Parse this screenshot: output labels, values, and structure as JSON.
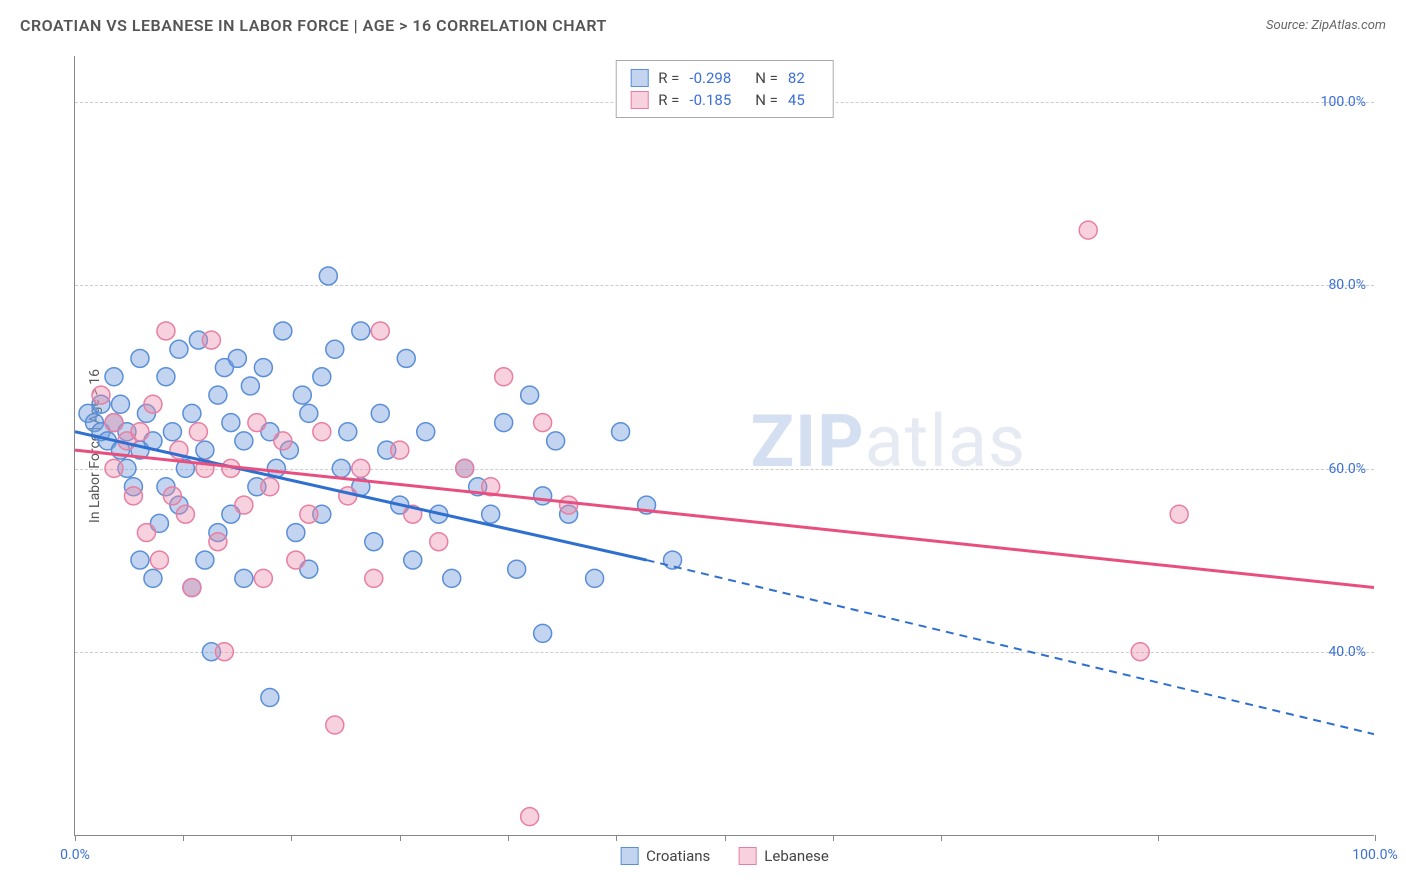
{
  "header": {
    "title": "CROATIAN VS LEBANESE IN LABOR FORCE | AGE > 16 CORRELATION CHART",
    "source": "Source: ZipAtlas.com"
  },
  "watermark": {
    "prefix": "ZIP",
    "suffix": "atlas"
  },
  "chart": {
    "type": "scatter",
    "y_label": "In Labor Force | Age > 16",
    "xlim": [
      0,
      100
    ],
    "ylim": [
      20,
      105
    ],
    "x_ticks": [
      0,
      8.3,
      16.6,
      25,
      33.3,
      41.6,
      50,
      58.3,
      66.6,
      83.3,
      100
    ],
    "x_tick_labels": {
      "0": "0.0%",
      "100": "100.0%"
    },
    "y_gridlines": [
      40,
      60,
      80,
      100
    ],
    "y_tick_labels": {
      "40": "40.0%",
      "60": "60.0%",
      "80": "80.0%",
      "100": "100.0%"
    },
    "background_color": "#ffffff",
    "grid_color": "#cccccc",
    "axis_label_color": "#3b6fd6",
    "series": [
      {
        "name": "Croatians",
        "fill_color": "rgba(120,160,220,0.45)",
        "stroke_color": "#5a8fd8",
        "line_color": "#2e6fd0",
        "r_value": "-0.298",
        "n_value": "82",
        "trend": {
          "x1": 0,
          "y1": 64,
          "x2_solid": 44,
          "y2_solid": 50,
          "x2_dash": 100,
          "y2_dash": 31
        },
        "marker_radius": 9,
        "points": [
          [
            1,
            66
          ],
          [
            1.5,
            65
          ],
          [
            2,
            67
          ],
          [
            2,
            64
          ],
          [
            2.5,
            63
          ],
          [
            3,
            65
          ],
          [
            3,
            70
          ],
          [
            3.5,
            62
          ],
          [
            3.5,
            67
          ],
          [
            4,
            64
          ],
          [
            4,
            60
          ],
          [
            4.5,
            58
          ],
          [
            5,
            72
          ],
          [
            5,
            62
          ],
          [
            5,
            50
          ],
          [
            5.5,
            66
          ],
          [
            6,
            48
          ],
          [
            6,
            63
          ],
          [
            6.5,
            54
          ],
          [
            7,
            70
          ],
          [
            7,
            58
          ],
          [
            7.5,
            64
          ],
          [
            8,
            73
          ],
          [
            8,
            56
          ],
          [
            8.5,
            60
          ],
          [
            9,
            66
          ],
          [
            9,
            47
          ],
          [
            9.5,
            74
          ],
          [
            10,
            50
          ],
          [
            10,
            62
          ],
          [
            10.5,
            40
          ],
          [
            11,
            68
          ],
          [
            11,
            53
          ],
          [
            11.5,
            71
          ],
          [
            12,
            65
          ],
          [
            12,
            55
          ],
          [
            12.5,
            72
          ],
          [
            13,
            63
          ],
          [
            13,
            48
          ],
          [
            13.5,
            69
          ],
          [
            14,
            58
          ],
          [
            14.5,
            71
          ],
          [
            15,
            64
          ],
          [
            15,
            35
          ],
          [
            15.5,
            60
          ],
          [
            16,
            75
          ],
          [
            16.5,
            62
          ],
          [
            17,
            53
          ],
          [
            17.5,
            68
          ],
          [
            18,
            49
          ],
          [
            18,
            66
          ],
          [
            19,
            55
          ],
          [
            19,
            70
          ],
          [
            19.5,
            81
          ],
          [
            20,
            73
          ],
          [
            20.5,
            60
          ],
          [
            21,
            64
          ],
          [
            22,
            75
          ],
          [
            22,
            58
          ],
          [
            23,
            52
          ],
          [
            23.5,
            66
          ],
          [
            24,
            62
          ],
          [
            25,
            56
          ],
          [
            25.5,
            72
          ],
          [
            26,
            50
          ],
          [
            27,
            64
          ],
          [
            28,
            55
          ],
          [
            29,
            48
          ],
          [
            30,
            60
          ],
          [
            31,
            58
          ],
          [
            32,
            55
          ],
          [
            33,
            65
          ],
          [
            34,
            49
          ],
          [
            35,
            68
          ],
          [
            36,
            42
          ],
          [
            36,
            57
          ],
          [
            37,
            63
          ],
          [
            38,
            55
          ],
          [
            40,
            48
          ],
          [
            42,
            64
          ],
          [
            44,
            56
          ],
          [
            46,
            50
          ]
        ]
      },
      {
        "name": "Lebanese",
        "fill_color": "rgba(235,140,170,0.40)",
        "stroke_color": "#e87fa3",
        "line_color": "#e84f7e",
        "r_value": "-0.185",
        "n_value": "45",
        "trend": {
          "x1": 0,
          "y1": 62,
          "x2_solid": 100,
          "y2_solid": 47
        },
        "marker_radius": 9,
        "points": [
          [
            2,
            68
          ],
          [
            3,
            65
          ],
          [
            3,
            60
          ],
          [
            4,
            63
          ],
          [
            4.5,
            57
          ],
          [
            5,
            64
          ],
          [
            5.5,
            53
          ],
          [
            6,
            67
          ],
          [
            6.5,
            50
          ],
          [
            7,
            75
          ],
          [
            7.5,
            57
          ],
          [
            8,
            62
          ],
          [
            8.5,
            55
          ],
          [
            9,
            47
          ],
          [
            9.5,
            64
          ],
          [
            10,
            60
          ],
          [
            10.5,
            74
          ],
          [
            11,
            52
          ],
          [
            11.5,
            40
          ],
          [
            12,
            60
          ],
          [
            13,
            56
          ],
          [
            14,
            65
          ],
          [
            14.5,
            48
          ],
          [
            15,
            58
          ],
          [
            16,
            63
          ],
          [
            17,
            50
          ],
          [
            18,
            55
          ],
          [
            19,
            64
          ],
          [
            20,
            32
          ],
          [
            21,
            57
          ],
          [
            22,
            60
          ],
          [
            23,
            48
          ],
          [
            23.5,
            75
          ],
          [
            25,
            62
          ],
          [
            26,
            55
          ],
          [
            28,
            52
          ],
          [
            30,
            60
          ],
          [
            32,
            58
          ],
          [
            33,
            70
          ],
          [
            35,
            22
          ],
          [
            36,
            65
          ],
          [
            38,
            56
          ],
          [
            78,
            86
          ],
          [
            82,
            40
          ],
          [
            85,
            55
          ]
        ]
      }
    ]
  },
  "legend_bottom": [
    {
      "label": "Croatians",
      "fill": "rgba(120,160,220,0.45)",
      "stroke": "#5a8fd8"
    },
    {
      "label": "Lebanese",
      "fill": "rgba(235,140,170,0.40)",
      "stroke": "#e87fa3"
    }
  ]
}
